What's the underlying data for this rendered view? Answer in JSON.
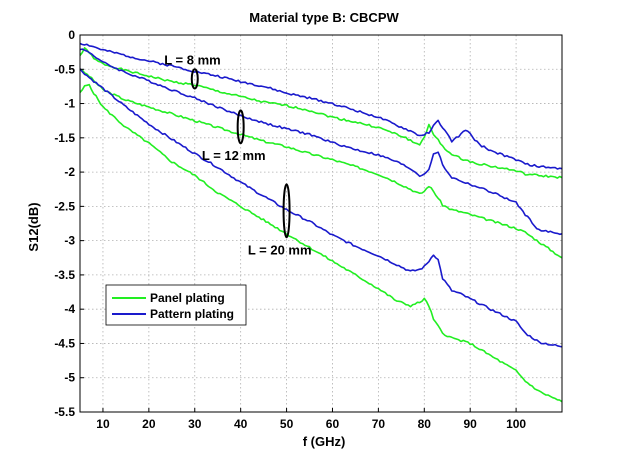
{
  "chart_data": {
    "type": "line",
    "title": "Material type B: CBCPW",
    "xlabel": "f (GHz)",
    "ylabel": "S12(dB)",
    "xlim": [
      5,
      110
    ],
    "ylim": [
      -5.5,
      0
    ],
    "xticks": [
      10,
      20,
      30,
      40,
      50,
      60,
      70,
      80,
      90,
      100
    ],
    "yticks": [
      0,
      -0.5,
      -1,
      -1.5,
      -2,
      -2.5,
      -3,
      -3.5,
      -4,
      -4.5,
      -5,
      -5.5
    ],
    "xtick_labels": [
      "10",
      "20",
      "30",
      "40",
      "50",
      "60",
      "70",
      "80",
      "90",
      "100"
    ],
    "ytick_labels": [
      "0",
      "-0.5",
      "-1",
      "-1.5",
      "-2",
      "-2.5",
      "-3",
      "-3.5",
      "-4",
      "-4.5",
      "-5",
      "-5.5"
    ],
    "grid": true,
    "legend_position": "lower-left",
    "colors": {
      "panel": "#22ee22",
      "pattern": "#1a1acc"
    },
    "legend": [
      "Panel plating",
      "Pattern plating"
    ],
    "series": [
      {
        "name": "Panel plating",
        "length": "8 mm",
        "color_key": "panel",
        "x": [
          5,
          6,
          7,
          8,
          10,
          15,
          20,
          25,
          30,
          35,
          40,
          45,
          50,
          55,
          60,
          65,
          70,
          74,
          76,
          78,
          79,
          80,
          81,
          82,
          84,
          86,
          88,
          90,
          95,
          100,
          102,
          105,
          110
        ],
        "y": [
          -0.3,
          -0.2,
          -0.25,
          -0.35,
          -0.42,
          -0.52,
          -0.6,
          -0.68,
          -0.73,
          -0.82,
          -0.9,
          -0.98,
          -1.03,
          -1.1,
          -1.2,
          -1.27,
          -1.35,
          -1.45,
          -1.5,
          -1.58,
          -1.6,
          -1.48,
          -1.32,
          -1.45,
          -1.62,
          -1.75,
          -1.8,
          -1.85,
          -1.92,
          -1.98,
          -2.03,
          -2.05,
          -2.08
        ]
      },
      {
        "name": "Pattern plating",
        "length": "8 mm",
        "color_key": "pattern",
        "x": [
          5,
          7,
          10,
          15,
          20,
          25,
          30,
          35,
          40,
          45,
          50,
          55,
          60,
          65,
          70,
          74,
          77,
          79,
          80,
          81,
          82,
          83,
          84,
          86,
          88,
          89,
          90,
          92,
          95,
          100,
          102,
          105,
          110
        ],
        "y": [
          -0.12,
          -0.15,
          -0.22,
          -0.3,
          -0.38,
          -0.45,
          -0.53,
          -0.6,
          -0.68,
          -0.75,
          -0.85,
          -0.92,
          -1.0,
          -1.1,
          -1.2,
          -1.32,
          -1.4,
          -1.47,
          -1.45,
          -1.42,
          -1.33,
          -1.25,
          -1.35,
          -1.55,
          -1.45,
          -1.38,
          -1.45,
          -1.6,
          -1.7,
          -1.82,
          -1.88,
          -1.92,
          -1.95
        ]
      },
      {
        "name": "Panel plating",
        "length": "12 mm",
        "color_key": "panel",
        "x": [
          5,
          7,
          10,
          15,
          20,
          25,
          30,
          35,
          40,
          45,
          50,
          55,
          60,
          65,
          70,
          74,
          77,
          79,
          80,
          81,
          82,
          84,
          86,
          88,
          90,
          95,
          100,
          102,
          105,
          110
        ],
        "y": [
          -0.5,
          -0.6,
          -0.8,
          -0.95,
          -1.05,
          -1.15,
          -1.25,
          -1.35,
          -1.45,
          -1.55,
          -1.63,
          -1.73,
          -1.82,
          -1.92,
          -2.03,
          -2.15,
          -2.25,
          -2.32,
          -2.28,
          -2.2,
          -2.28,
          -2.48,
          -2.55,
          -2.58,
          -2.62,
          -2.72,
          -2.82,
          -2.88,
          -3.02,
          -3.25
        ]
      },
      {
        "name": "Pattern plating",
        "length": "12 mm",
        "color_key": "pattern",
        "x": [
          5,
          7,
          10,
          15,
          20,
          25,
          30,
          35,
          40,
          45,
          50,
          55,
          60,
          65,
          70,
          74,
          77,
          79,
          80,
          81,
          82,
          83,
          84,
          86,
          88,
          90,
          95,
          100,
          102,
          105,
          110
        ],
        "y": [
          -0.2,
          -0.25,
          -0.4,
          -0.55,
          -0.67,
          -0.8,
          -0.92,
          -1.05,
          -1.18,
          -1.28,
          -1.37,
          -1.45,
          -1.57,
          -1.67,
          -1.75,
          -1.85,
          -1.95,
          -2.05,
          -2.03,
          -1.95,
          -1.75,
          -1.7,
          -1.9,
          -2.08,
          -2.13,
          -2.18,
          -2.3,
          -2.45,
          -2.62,
          -2.85,
          -2.9
        ]
      },
      {
        "name": "Panel plating",
        "length": "20 mm",
        "color_key": "panel",
        "x": [
          5,
          6,
          7,
          8,
          10,
          15,
          20,
          25,
          30,
          35,
          40,
          45,
          50,
          55,
          60,
          65,
          70,
          74,
          77,
          79,
          80,
          81,
          82,
          84,
          86,
          90,
          95,
          100,
          102,
          105,
          110
        ],
        "y": [
          -0.85,
          -0.75,
          -0.72,
          -0.85,
          -1.05,
          -1.35,
          -1.58,
          -1.85,
          -2.05,
          -2.3,
          -2.5,
          -2.7,
          -2.9,
          -3.1,
          -3.3,
          -3.5,
          -3.7,
          -3.88,
          -3.95,
          -3.9,
          -3.85,
          -3.95,
          -4.15,
          -4.35,
          -4.42,
          -4.5,
          -4.7,
          -4.9,
          -5.05,
          -5.2,
          -5.35
        ]
      },
      {
        "name": "Pattern plating",
        "length": "20 mm",
        "color_key": "pattern",
        "x": [
          5,
          7,
          10,
          15,
          20,
          25,
          30,
          35,
          40,
          45,
          50,
          55,
          60,
          65,
          70,
          74,
          77,
          79,
          80,
          81,
          82,
          83,
          84,
          86,
          88,
          90,
          95,
          100,
          102,
          105,
          110
        ],
        "y": [
          -0.5,
          -0.62,
          -0.78,
          -1.05,
          -1.3,
          -1.52,
          -1.73,
          -1.93,
          -2.15,
          -2.35,
          -2.55,
          -2.72,
          -2.92,
          -3.08,
          -3.22,
          -3.35,
          -3.45,
          -3.42,
          -3.38,
          -3.3,
          -3.2,
          -3.28,
          -3.55,
          -3.73,
          -3.78,
          -3.85,
          -4.02,
          -4.18,
          -4.35,
          -4.48,
          -4.55
        ]
      }
    ],
    "annotations": [
      {
        "text": "L = 8 mm",
        "ellipse_x": 30,
        "ellipse_y": [
          -0.5,
          -0.78
        ],
        "text_x": 29.5,
        "text_y": -0.43
      },
      {
        "text": "L = 12 mm",
        "ellipse_x": 40,
        "ellipse_y": [
          -1.1,
          -1.58
        ],
        "text_x": 38.5,
        "text_y": -1.82
      },
      {
        "text": "L = 20 mm",
        "ellipse_x": 50,
        "ellipse_y": [
          -2.18,
          -2.95
        ],
        "text_x": 48.5,
        "text_y": -3.2
      }
    ]
  }
}
